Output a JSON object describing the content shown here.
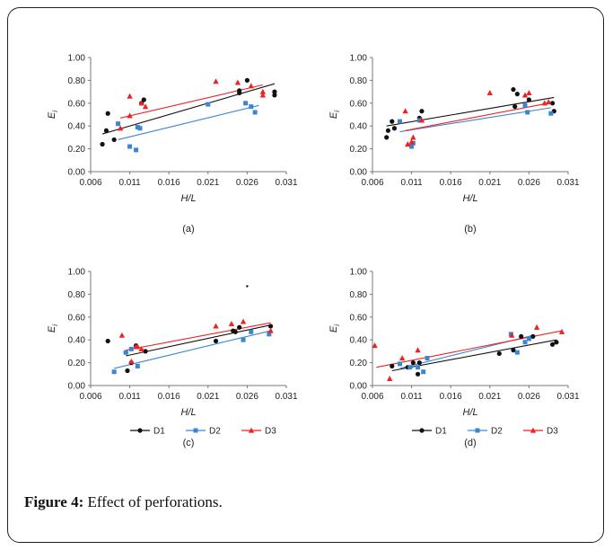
{
  "caption": {
    "label": "Figure 4:",
    "text": " Effect of perforations."
  },
  "colors": {
    "D1": "#111111",
    "D2": "#3b86cf",
    "D3": "#ee2222"
  },
  "chart_data": [
    {
      "id": "a",
      "type": "scatter",
      "sublabel": "(a)",
      "xlabel": "H/L",
      "ylabel": "E_i",
      "xlim": [
        0.006,
        0.031
      ],
      "ylim": [
        0,
        1.0
      ],
      "xticks": [
        "0.006",
        "0.011",
        "0.016",
        "0.021",
        "0.026",
        "0.031"
      ],
      "yticks": [
        "0.00",
        "0.20",
        "0.40",
        "0.60",
        "0.80",
        "1.00"
      ],
      "legend": false,
      "grid": false,
      "series": [
        {
          "key": "D1",
          "marker": "circle",
          "x": [
            0.0075,
            0.008,
            0.0082,
            0.009,
            0.0125,
            0.0128,
            0.025,
            0.025,
            0.026,
            0.0295,
            0.0295
          ],
          "y": [
            0.24,
            0.36,
            0.51,
            0.28,
            0.6,
            0.63,
            0.69,
            0.71,
            0.8,
            0.67,
            0.7
          ],
          "trend": [
            [
              0.0075,
              0.33
            ],
            [
              0.0295,
              0.77
            ]
          ]
        },
        {
          "key": "D2",
          "marker": "square",
          "x": [
            0.0095,
            0.011,
            0.0118,
            0.012,
            0.0123,
            0.021,
            0.0258,
            0.0265,
            0.027
          ],
          "y": [
            0.42,
            0.22,
            0.19,
            0.39,
            0.38,
            0.59,
            0.6,
            0.57,
            0.52
          ],
          "trend": [
            [
              0.0095,
              0.28
            ],
            [
              0.0275,
              0.58
            ]
          ]
        },
        {
          "key": "D3",
          "marker": "triangle",
          "x": [
            0.0098,
            0.011,
            0.011,
            0.0125,
            0.013,
            0.022,
            0.0248,
            0.0265,
            0.028,
            0.028
          ],
          "y": [
            0.38,
            0.49,
            0.66,
            0.6,
            0.57,
            0.79,
            0.78,
            0.75,
            0.7,
            0.67
          ],
          "trend": [
            [
              0.0098,
              0.47
            ],
            [
              0.028,
              0.76
            ]
          ]
        }
      ]
    },
    {
      "id": "b",
      "type": "scatter",
      "sublabel": "(b)",
      "xlabel": "H/L",
      "ylabel": "E_i",
      "xlim": [
        0.006,
        0.031
      ],
      "ylim": [
        0,
        1.0
      ],
      "xticks": [
        "0.006",
        "0.011",
        "0.016",
        "0.021",
        "0.026",
        "0.031"
      ],
      "yticks": [
        "0.00",
        "0.20",
        "0.40",
        "0.60",
        "0.80",
        "1.00"
      ],
      "legend": false,
      "grid": false,
      "series": [
        {
          "key": "D1",
          "marker": "circle",
          "x": [
            0.0078,
            0.008,
            0.0085,
            0.0088,
            0.012,
            0.0123,
            0.024,
            0.0242,
            0.0245,
            0.026,
            0.029,
            0.0292
          ],
          "y": [
            0.3,
            0.36,
            0.44,
            0.38,
            0.47,
            0.53,
            0.72,
            0.57,
            0.68,
            0.63,
            0.6,
            0.53
          ],
          "trend": [
            [
              0.0078,
              0.4
            ],
            [
              0.0292,
              0.65
            ]
          ]
        },
        {
          "key": "D2",
          "marker": "square",
          "x": [
            0.0095,
            0.011,
            0.0112,
            0.012,
            0.0255,
            0.0258,
            0.0288
          ],
          "y": [
            0.44,
            0.22,
            0.25,
            0.45,
            0.58,
            0.52,
            0.51
          ],
          "trend": [
            [
              0.0095,
              0.35
            ],
            [
              0.0288,
              0.56
            ]
          ]
        },
        {
          "key": "D3",
          "marker": "triangle",
          "x": [
            0.0102,
            0.0105,
            0.011,
            0.0112,
            0.0123,
            0.021,
            0.0255,
            0.026,
            0.028,
            0.0285
          ],
          "y": [
            0.53,
            0.24,
            0.26,
            0.3,
            0.45,
            0.69,
            0.67,
            0.69,
            0.6,
            0.61
          ],
          "trend": [
            [
              0.0102,
              0.36
            ],
            [
              0.0285,
              0.6
            ]
          ]
        }
      ]
    },
    {
      "id": "c",
      "type": "scatter",
      "sublabel": "(c)",
      "xlabel": "H/L",
      "ylabel": "E_i",
      "xlim": [
        0.006,
        0.031
      ],
      "ylim": [
        0,
        1.0
      ],
      "xticks": [
        "0.006",
        "0.011",
        "0.016",
        "0.021",
        "0.026",
        "0.031"
      ],
      "yticks": [
        "0.00",
        "0.20",
        "0.40",
        "0.60",
        "0.80",
        "1.00"
      ],
      "legend": true,
      "grid": false,
      "series": [
        {
          "key": "D1",
          "marker": "circle",
          "x": [
            0.0082,
            0.0105,
            0.0107,
            0.0112,
            0.0118,
            0.013,
            0.022,
            0.0242,
            0.0245,
            0.025,
            0.029
          ],
          "y": [
            0.39,
            0.29,
            0.13,
            0.2,
            0.35,
            0.3,
            0.39,
            0.48,
            0.47,
            0.51,
            0.52
          ],
          "trend": [
            [
              0.0105,
              0.26
            ],
            [
              0.029,
              0.53
            ]
          ]
        },
        {
          "key": "D2",
          "marker": "square",
          "x": [
            0.009,
            0.0105,
            0.0112,
            0.012,
            0.0255,
            0.0265,
            0.0288
          ],
          "y": [
            0.12,
            0.29,
            0.32,
            0.17,
            0.4,
            0.47,
            0.45
          ],
          "trend": [
            [
              0.009,
              0.15
            ],
            [
              0.029,
              0.48
            ]
          ]
        },
        {
          "key": "D3",
          "marker": "triangle",
          "x": [
            0.01,
            0.0112,
            0.0118,
            0.012,
            0.0125,
            0.022,
            0.024,
            0.0255,
            0.029
          ],
          "y": [
            0.44,
            0.21,
            0.34,
            0.34,
            0.32,
            0.52,
            0.54,
            0.56,
            0.48
          ],
          "trend": [
            [
              0.0105,
              0.31
            ],
            [
              0.029,
              0.55
            ]
          ]
        }
      ],
      "extra_points": [
        {
          "x": 0.026,
          "y": 0.87
        }
      ]
    },
    {
      "id": "d",
      "type": "scatter",
      "sublabel": "(d)",
      "xlabel": "H/L",
      "ylabel": "E_i",
      "xlim": [
        0.006,
        0.031
      ],
      "ylim": [
        0,
        1.0
      ],
      "xticks": [
        "0.006",
        "0.011",
        "0.016",
        "0.021",
        "0.026",
        "0.031"
      ],
      "yticks": [
        "0.00",
        "0.20",
        "0.40",
        "0.60",
        "0.80",
        "1.00"
      ],
      "legend": true,
      "grid": false,
      "series": [
        {
          "key": "D1",
          "marker": "circle",
          "x": [
            0.0085,
            0.0105,
            0.0112,
            0.0118,
            0.012,
            0.0222,
            0.024,
            0.025,
            0.0265,
            0.029,
            0.0295
          ],
          "y": [
            0.17,
            0.16,
            0.2,
            0.1,
            0.2,
            0.28,
            0.31,
            0.43,
            0.43,
            0.36,
            0.38
          ],
          "trend": [
            [
              0.0085,
              0.13
            ],
            [
              0.0295,
              0.4
            ]
          ]
        },
        {
          "key": "D2",
          "marker": "square",
          "x": [
            0.0095,
            0.0108,
            0.0118,
            0.0125,
            0.013,
            0.0237,
            0.0245,
            0.0255,
            0.026
          ],
          "y": [
            0.19,
            0.16,
            0.16,
            0.12,
            0.24,
            0.45,
            0.29,
            0.38,
            0.41
          ],
          "trend": [
            [
              0.0095,
              0.15
            ],
            [
              0.0265,
              0.44
            ]
          ]
        },
        {
          "key": "D3",
          "marker": "triangle",
          "x": [
            0.0063,
            0.0082,
            0.0098,
            0.0118,
            0.0238,
            0.027,
            0.0302
          ],
          "y": [
            0.35,
            0.06,
            0.24,
            0.31,
            0.44,
            0.51,
            0.47
          ],
          "trend": [
            [
              0.0065,
              0.16
            ],
            [
              0.0302,
              0.48
            ]
          ]
        }
      ]
    }
  ]
}
